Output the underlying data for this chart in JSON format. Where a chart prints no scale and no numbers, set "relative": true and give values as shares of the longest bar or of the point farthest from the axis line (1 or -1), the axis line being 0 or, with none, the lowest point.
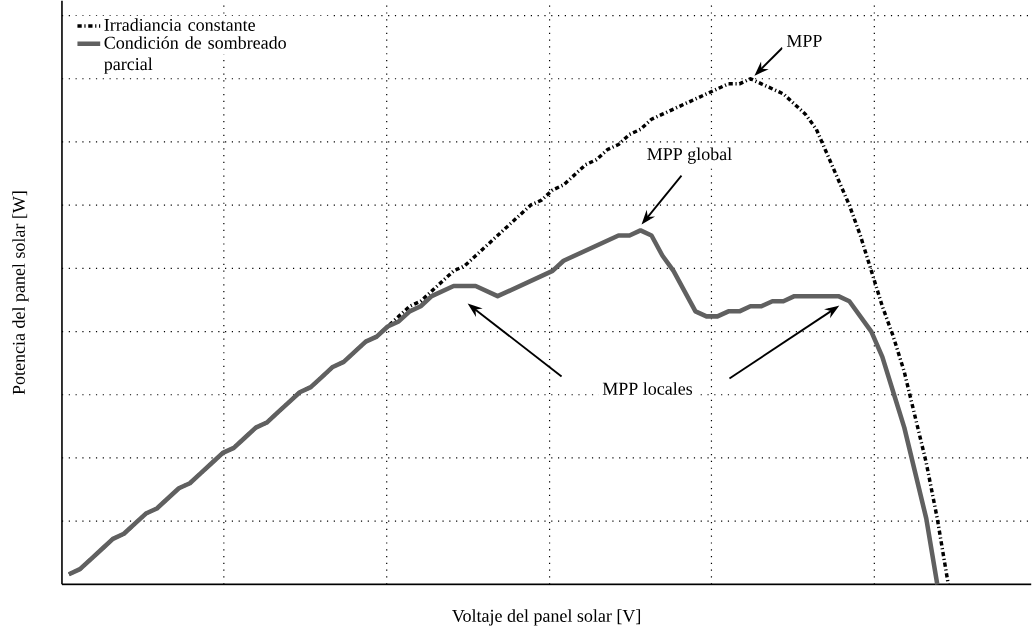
{
  "chart_data": {
    "type": "line",
    "relative": true,
    "xlabel": "Voltaje del panel solar [V]",
    "ylabel": "Potencia del panel solar [W]",
    "categories": [
      null,
      null,
      null,
      null,
      null,
      null,
      null,
      null,
      null,
      null,
      null,
      null,
      null,
      null,
      null,
      null,
      null,
      null,
      null,
      null,
      null,
      null,
      null,
      null,
      null,
      null,
      null,
      null,
      null,
      null,
      null,
      null,
      null,
      null,
      null,
      null,
      null,
      null,
      null,
      null,
      null,
      null,
      null,
      null,
      null,
      null,
      null,
      null,
      null,
      null,
      null,
      null,
      null,
      null,
      null,
      null,
      null,
      null,
      null,
      null,
      null,
      null,
      null,
      null,
      null,
      null,
      null,
      null,
      null,
      null,
      null,
      null,
      null,
      null,
      null,
      null,
      null,
      null,
      null,
      null,
      null
    ],
    "series": [
      {
        "name": "Irradiancia constante",
        "color": "#000000",
        "line_style": "dashed",
        "values": [
          0.02,
          0.03,
          0.05,
          0.07,
          0.09,
          0.1,
          0.12,
          0.14,
          0.15,
          0.17,
          0.19,
          0.2,
          0.22,
          0.24,
          0.26,
          0.27,
          0.29,
          0.31,
          0.32,
          0.34,
          0.36,
          0.38,
          0.39,
          0.41,
          0.43,
          0.44,
          0.46,
          0.48,
          0.49,
          0.51,
          0.53,
          0.55,
          0.56,
          0.58,
          0.6,
          0.62,
          0.63,
          0.65,
          0.67,
          0.69,
          0.71,
          0.73,
          0.75,
          0.76,
          0.78,
          0.79,
          0.81,
          0.83,
          0.84,
          0.86,
          0.87,
          0.89,
          0.9,
          0.92,
          0.93,
          0.94,
          0.95,
          0.96,
          0.97,
          0.98,
          0.99,
          0.99,
          1,
          0.99,
          0.98,
          0.97,
          0.95,
          0.93,
          0.9,
          0.85,
          0.8,
          0.75,
          0.69,
          0.62,
          0.55,
          0.49,
          0.42,
          0.33,
          0.24,
          0.13,
          0
        ]
      },
      {
        "name": "Condición de sombreado parcial",
        "color": "#606060",
        "line_style": "solid",
        "values": [
          0.02,
          0.03,
          0.05,
          0.07,
          0.09,
          0.1,
          0.12,
          0.14,
          0.15,
          0.17,
          0.19,
          0.2,
          0.22,
          0.24,
          0.26,
          0.27,
          0.29,
          0.31,
          0.32,
          0.34,
          0.36,
          0.38,
          0.39,
          0.41,
          0.43,
          0.44,
          0.46,
          0.48,
          0.49,
          0.51,
          0.52,
          0.54,
          0.55,
          0.57,
          0.58,
          0.59,
          0.59,
          0.59,
          0.58,
          0.57,
          0.58,
          0.59,
          0.6,
          0.61,
          0.62,
          0.64,
          0.65,
          0.66,
          0.67,
          0.68,
          0.69,
          0.69,
          0.7,
          0.69,
          0.65,
          0.62,
          0.58,
          0.54,
          0.53,
          0.53,
          0.54,
          0.54,
          0.55,
          0.55,
          0.56,
          0.56,
          0.57,
          0.57,
          0.57,
          0.57,
          0.57,
          0.56,
          0.53,
          0.5,
          0.45,
          0.38,
          0.31,
          0.22,
          0.13,
          0,
          null
        ]
      }
    ],
    "grid": true,
    "legend": "top left",
    "marker": "none",
    "annotations": [
      "MPP",
      "MPP global",
      "MPP locales"
    ]
  }
}
